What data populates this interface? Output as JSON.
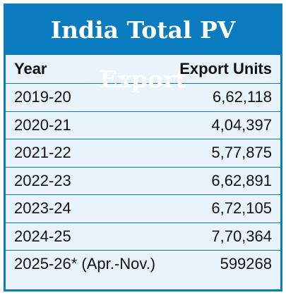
{
  "title": "India Total PV Export",
  "header": {
    "year": "Year",
    "units": "Export Units"
  },
  "rows": [
    {
      "year": "2019-20",
      "units": "6,62,118"
    },
    {
      "year": "2020-21",
      "units": "4,04,397"
    },
    {
      "year": "2021-22",
      "units": "5,77,875"
    },
    {
      "year": "2022-23",
      "units": "6,62,891"
    },
    {
      "year": "2023-24",
      "units": "6,72,105"
    },
    {
      "year": "2024-25",
      "units": "7,70,364"
    },
    {
      "year": "2025-26* (Apr.-Nov.)",
      "units": "599268"
    }
  ],
  "colors": {
    "accent": "#0b7bc0",
    "background": "#e9f3fb"
  }
}
